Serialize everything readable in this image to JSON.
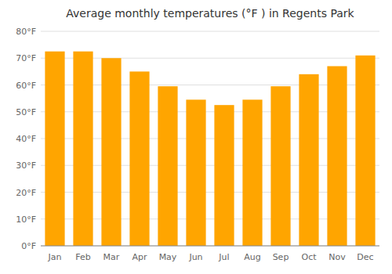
{
  "chart_data": {
    "type": "bar",
    "title": "Average monthly temperatures (°F ) in Regents Park",
    "categories": [
      "Jan",
      "Feb",
      "Mar",
      "Apr",
      "May",
      "Jun",
      "Jul",
      "Aug",
      "Sep",
      "Oct",
      "Nov",
      "Dec"
    ],
    "values": [
      72.5,
      72.5,
      70,
      65,
      59.5,
      54.5,
      52.5,
      54.5,
      59.5,
      64,
      67,
      71
    ],
    "color": "#FFA500",
    "ylim": [
      0,
      80
    ],
    "yticks": [
      {
        "value": 0,
        "label": "0°F"
      },
      {
        "value": 10,
        "label": "10°F"
      },
      {
        "value": 20,
        "label": "20°F"
      },
      {
        "value": 30,
        "label": "30°F"
      },
      {
        "value": 40,
        "label": "40°F"
      },
      {
        "value": 50,
        "label": "50°F"
      },
      {
        "value": 60,
        "label": "60°F"
      },
      {
        "value": 70,
        "label": "70°F"
      },
      {
        "value": 80,
        "label": "80°F"
      }
    ],
    "grid": true
  }
}
